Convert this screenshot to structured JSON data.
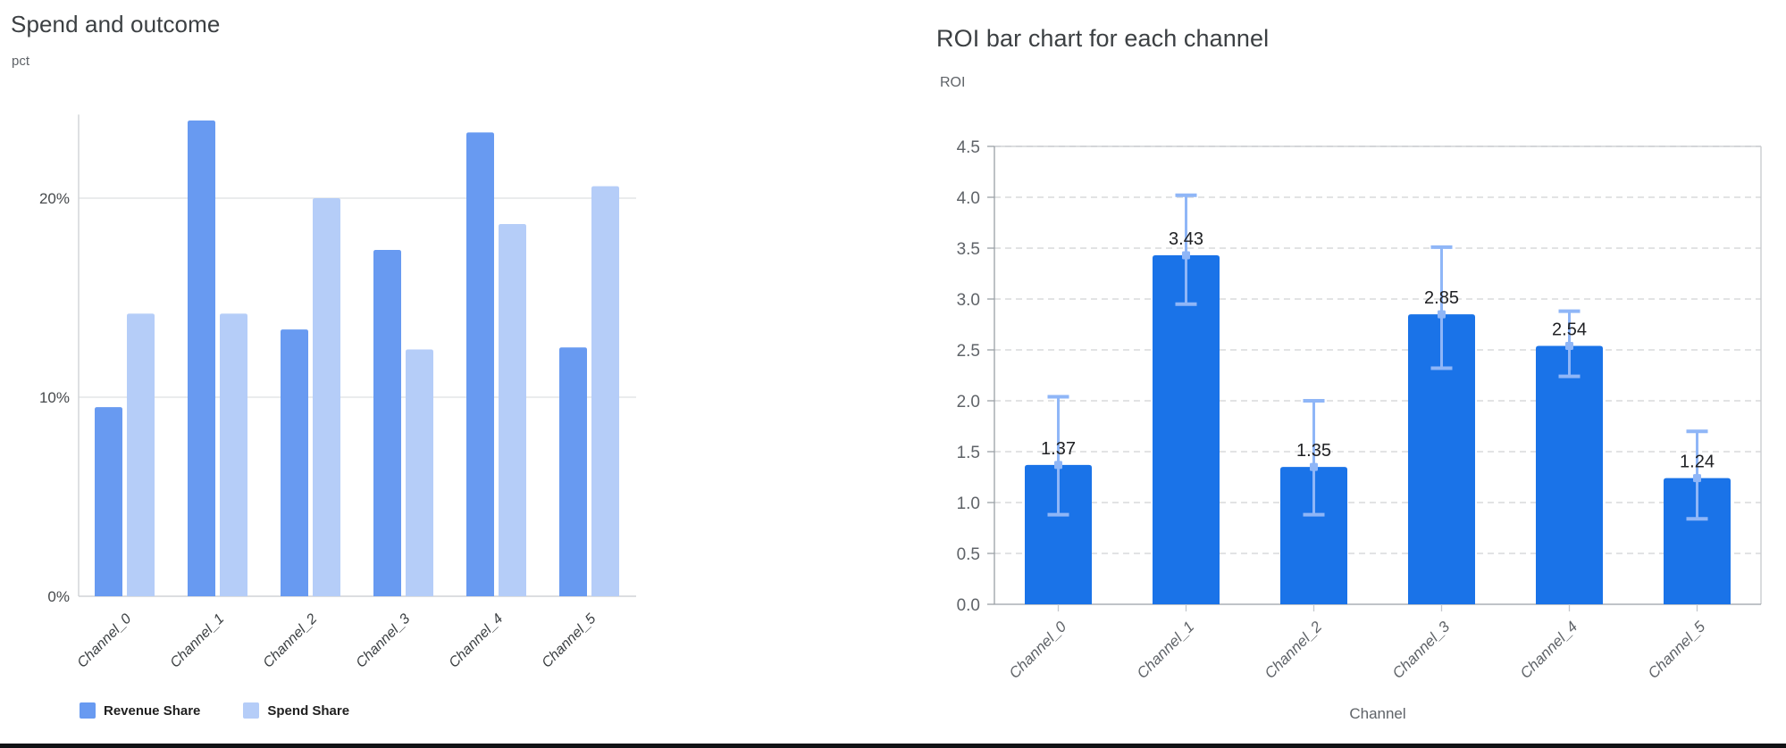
{
  "chart_data": [
    {
      "type": "bar",
      "title": "Spend and outcome",
      "ylabel": "pct",
      "xlabel": "",
      "categories": [
        "Channel_0",
        "Channel_1",
        "Channel_2",
        "Channel_3",
        "Channel_4",
        "Channel_5"
      ],
      "series": [
        {
          "name": "Revenue Share",
          "color": "#689af1",
          "values": [
            9.5,
            23.9,
            13.4,
            17.4,
            23.3,
            12.5
          ]
        },
        {
          "name": "Spend Share",
          "color": "#b5cdf8",
          "values": [
            14.2,
            14.2,
            20.0,
            12.4,
            18.7,
            20.6
          ]
        }
      ],
      "y_ticks": [
        {
          "v": 0,
          "label": "0%"
        },
        {
          "v": 10,
          "label": "10%"
        },
        {
          "v": 20,
          "label": "20%"
        }
      ],
      "ylim": [
        0,
        24.2
      ],
      "grid": "solid",
      "legend_position": "bottom"
    },
    {
      "type": "bar",
      "title": "ROI bar chart for each channel",
      "ylabel": "ROI",
      "xlabel": "Channel",
      "categories": [
        "Channel_0",
        "Channel_1",
        "Channel_2",
        "Channel_3",
        "Channel_4",
        "Channel_5"
      ],
      "values": [
        1.37,
        3.43,
        1.35,
        2.85,
        2.54,
        1.24
      ],
      "bar_labels": [
        "1.37",
        "3.43",
        "1.35",
        "2.85",
        "2.54",
        "1.24"
      ],
      "error_low": [
        0.88,
        2.95,
        0.88,
        2.32,
        2.24,
        0.84
      ],
      "error_high": [
        2.04,
        4.02,
        2.0,
        3.51,
        2.88,
        1.7
      ],
      "y_ticks": [
        {
          "v": 0.0,
          "label": "0.0"
        },
        {
          "v": 0.5,
          "label": "0.5"
        },
        {
          "v": 1.0,
          "label": "1.0"
        },
        {
          "v": 1.5,
          "label": "1.5"
        },
        {
          "v": 2.0,
          "label": "2.0"
        },
        {
          "v": 2.5,
          "label": "2.5"
        },
        {
          "v": 3.0,
          "label": "3.0"
        },
        {
          "v": 3.5,
          "label": "3.5"
        },
        {
          "v": 4.0,
          "label": "4.0"
        },
        {
          "v": 4.5,
          "label": "4.5"
        }
      ],
      "ylim": [
        0,
        4.5
      ],
      "grid": "dashed",
      "bar_color": "#1a73e8",
      "error_color": "#8fb6f7",
      "legend_position": "none"
    }
  ],
  "colors": {
    "title_text": "#3c4043",
    "axis_text": "#5f6368",
    "left_tick_text": "#46494c",
    "value_label_text": "#202124",
    "grid_solid": "#e4e5e7",
    "grid_dashed": "#d9dadc",
    "axis_line_dark": "#9aa0a6",
    "axis_line_light": "#c6c9cd",
    "bottom_border": "#101114"
  }
}
